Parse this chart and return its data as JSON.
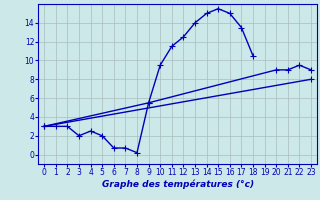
{
  "background_color": "#cce8e8",
  "grid_color": "#aabcbc",
  "line_color": "#0000bb",
  "xlabel": "Graphe des températures (°c)",
  "xlim": [
    -0.5,
    23.5
  ],
  "ylim": [
    -1,
    16
  ],
  "yticks": [
    0,
    2,
    4,
    6,
    8,
    10,
    12,
    14
  ],
  "xticks": [
    0,
    1,
    2,
    3,
    4,
    5,
    6,
    7,
    8,
    9,
    10,
    11,
    12,
    13,
    14,
    15,
    16,
    17,
    18,
    19,
    20,
    21,
    22,
    23
  ],
  "line1_x": [
    0,
    1,
    2,
    3,
    4,
    5,
    6,
    7,
    8,
    9,
    10,
    11,
    12,
    13,
    14,
    15,
    16,
    17,
    18
  ],
  "line1_y": [
    3.0,
    3.0,
    3.0,
    2.0,
    2.5,
    2.0,
    0.7,
    0.7,
    0.2,
    5.5,
    9.5,
    11.5,
    12.5,
    14.0,
    15.0,
    15.5,
    15.0,
    13.5,
    10.5
  ],
  "line1b_x": [
    23
  ],
  "line1b_y": [
    8.0
  ],
  "line2_x": [
    0,
    9,
    20,
    21,
    22,
    23
  ],
  "line2_y": [
    3.0,
    5.5,
    9.0,
    9.0,
    9.5,
    9.0
  ],
  "line3_x": [
    0,
    23
  ],
  "line3_y": [
    3.0,
    8.0
  ],
  "marker": "+",
  "marker_size": 4,
  "linewidth": 1.0,
  "tick_fontsize": 5.5
}
